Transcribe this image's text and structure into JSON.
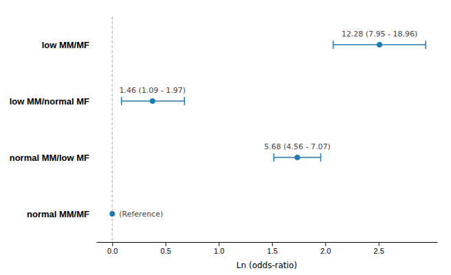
{
  "chart_data": {
    "type": "forest",
    "categories": [
      "low MM/MF",
      "low MM/normal MF",
      "normal MM/low MF",
      "normal MM/MF"
    ],
    "values": [
      2.508,
      0.378,
      1.737,
      0.0
    ],
    "ci_low": [
      2.073,
      0.086,
      1.517,
      null
    ],
    "ci_high": [
      2.942,
      0.678,
      1.957,
      null
    ],
    "annotations": [
      "12.28 (7.95 - 18.96)",
      "1.46 (1.09 - 1.97)",
      "5.68 (4.56 - 7.07)",
      "(Reference)"
    ],
    "xlabel": "Ln (odds-ratio)",
    "xlim": [
      -0.15,
      3.05
    ],
    "xticks": [
      {
        "value": 0.0,
        "label": "0.0"
      },
      0.5,
      {
        "value": 1.0,
        "label": "1.0"
      },
      1.5,
      {
        "value": 2.0,
        "label": "2.0"
      },
      2.5
    ],
    "ref_line_x": 0.0,
    "grid": false
  }
}
